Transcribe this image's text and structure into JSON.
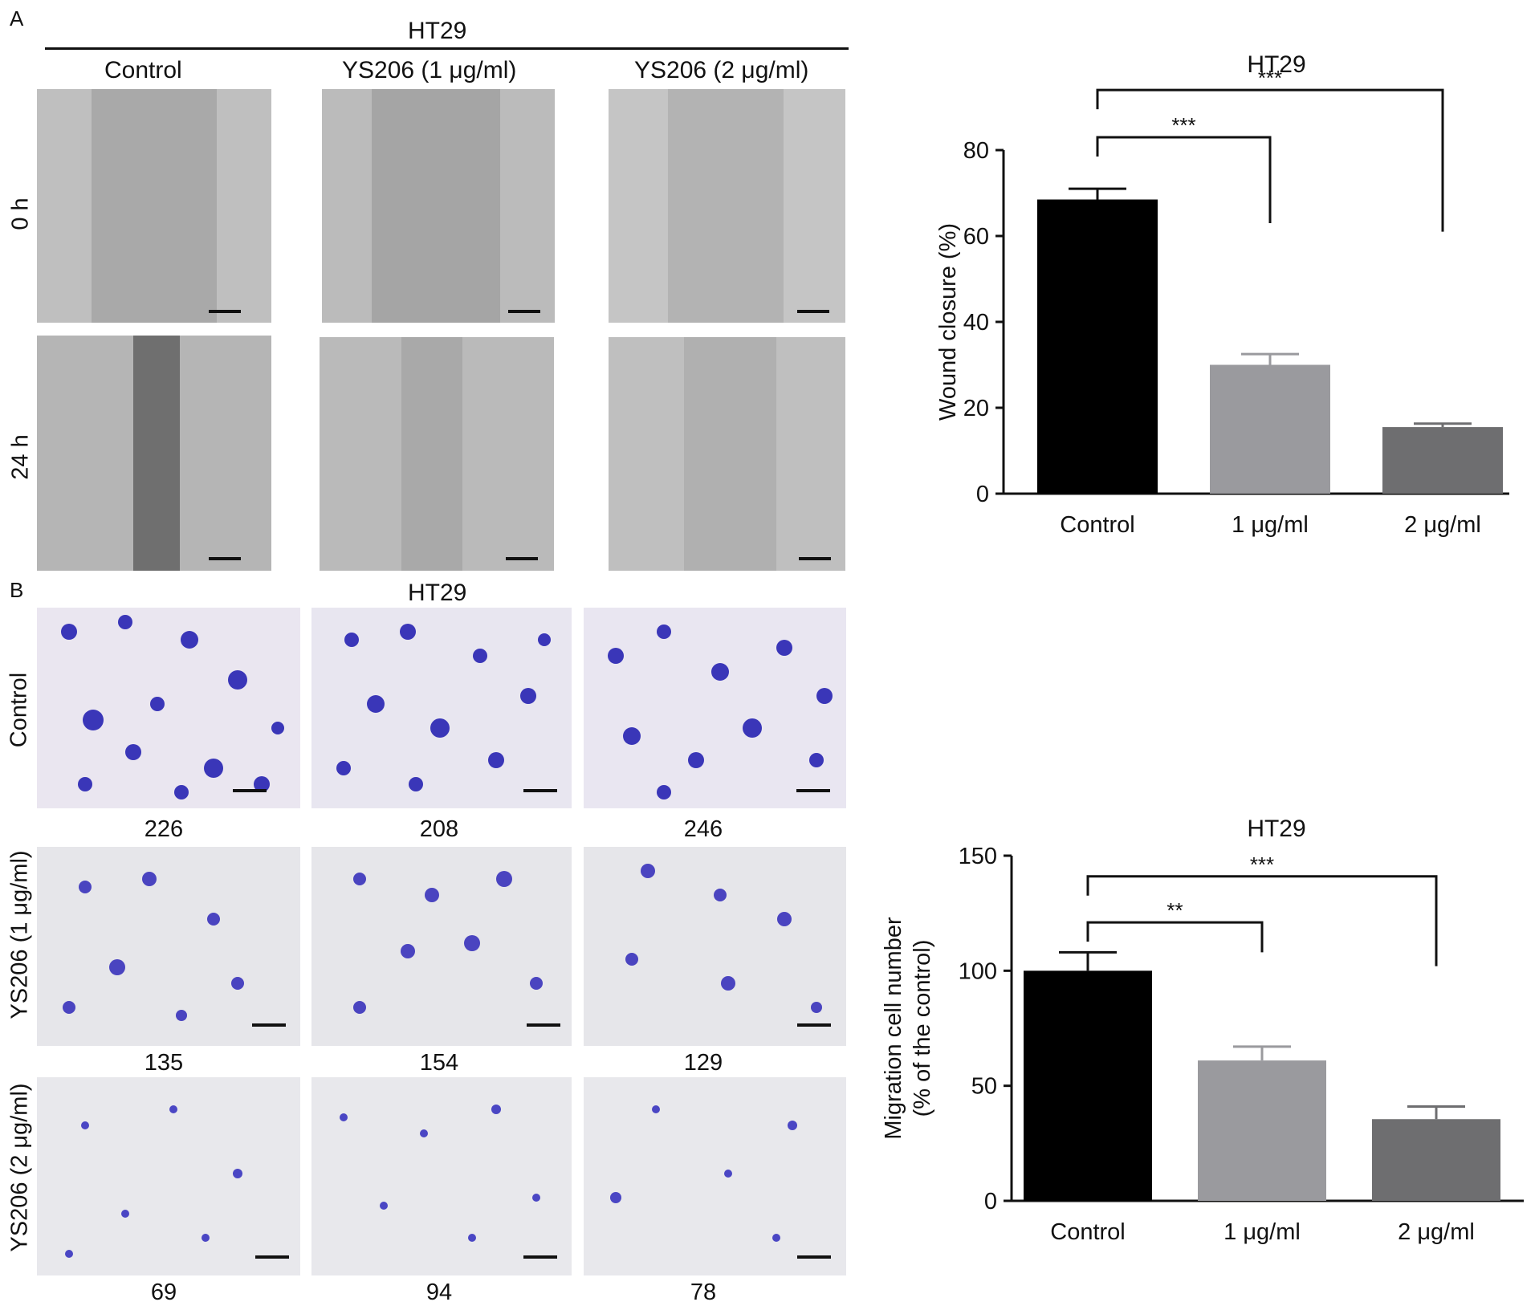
{
  "panel_a": {
    "letter": "A",
    "cell_line": "HT29",
    "columns": [
      "Control",
      "YS206 (1 μg/ml)",
      "YS206 (2 μg/ml)"
    ],
    "rows": [
      "0 h",
      "24 h"
    ]
  },
  "panel_b": {
    "letter": "B",
    "cell_line": "HT29",
    "rows": [
      "Control",
      "YS206 (1 μg/ml)",
      "YS206 (2 μg/ml)"
    ],
    "counts": [
      [
        "226",
        "208",
        "246"
      ],
      [
        "135",
        "154",
        "129"
      ],
      [
        "69",
        "94",
        "78"
      ]
    ]
  },
  "colors": {
    "control": "#000000",
    "low_dose": "#9a9a9e",
    "high_dose": "#6e6e70",
    "stain": "#3a36b8",
    "wound_bg": "#b0b0b0"
  },
  "chart_data": [
    {
      "type": "bar",
      "title": "HT29",
      "categories": [
        "Control",
        "1 μg/ml",
        "2 μg/ml"
      ],
      "values": [
        68.5,
        30,
        15.5
      ],
      "errors": [
        2.5,
        2.5,
        0.8
      ],
      "ylabel": "Wound closure (%)",
      "ylim": [
        0,
        80
      ],
      "yticks": [
        0,
        20,
        40,
        60,
        80
      ],
      "significance": [
        {
          "from": 0,
          "to": 1,
          "label": "***"
        },
        {
          "from": 0,
          "to": 2,
          "label": "***"
        }
      ]
    },
    {
      "type": "bar",
      "title": "HT29",
      "categories": [
        "Control",
        "1 μg/ml",
        "2 μg/ml"
      ],
      "values": [
        100,
        61,
        35.5
      ],
      "errors": [
        8,
        6,
        5.5
      ],
      "ylabel": [
        "Migration cell number",
        "(% of the control)"
      ],
      "ylim": [
        0,
        150
      ],
      "yticks": [
        0,
        50,
        100,
        150
      ],
      "significance": [
        {
          "from": 0,
          "to": 1,
          "label": "**"
        },
        {
          "from": 0,
          "to": 2,
          "label": "***"
        }
      ]
    }
  ]
}
